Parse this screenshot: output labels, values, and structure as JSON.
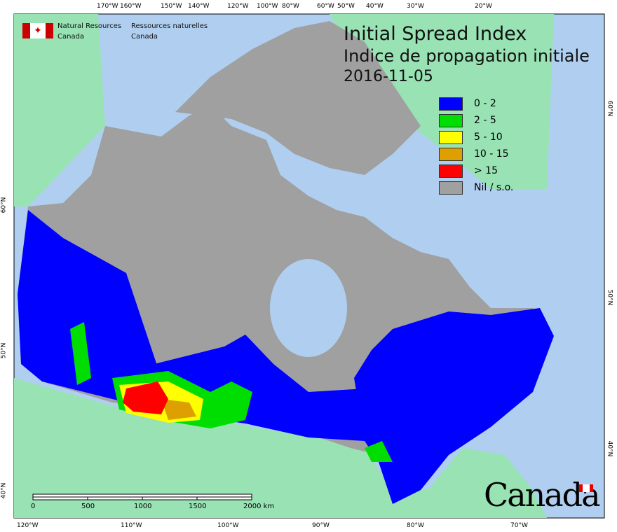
{
  "header": {
    "org_en_1": "Natural Resources",
    "org_en_2": "Canada",
    "org_fr_1": "Ressources naturelles",
    "org_fr_2": "Canada"
  },
  "title": {
    "en": "Initial Spread Index",
    "fr": "Indice de propagation initiale",
    "date": "2016-11-05"
  },
  "legend": [
    {
      "label": "0 - 2",
      "color": "#0000ff"
    },
    {
      "label": "2 - 5",
      "color": "#00dd00"
    },
    {
      "label": "5 - 10",
      "color": "#ffff00"
    },
    {
      "label": "10 - 15",
      "color": "#dda000"
    },
    {
      "label": "> 15",
      "color": "#ff0000"
    },
    {
      "label": "Nil / s.o.",
      "color": "#a0a0a0"
    }
  ],
  "axes": {
    "top": [
      "170°W",
      "160°W",
      "150°W",
      "140°W",
      "120°W",
      "100°W",
      "80°W",
      "60°W",
      "50°W",
      "40°W",
      "30°W",
      "20°W"
    ],
    "bottom": [
      "120°W",
      "110°W",
      "100°W",
      "90°W",
      "80°W",
      "70°W"
    ],
    "left": [
      "60°N",
      "50°N",
      "40°N"
    ],
    "right": [
      "60°N",
      "50°N",
      "40°N"
    ]
  },
  "scale_bar": {
    "labels": [
      "0",
      "500",
      "1000",
      "1500",
      "2000 km"
    ]
  },
  "wordmark": "Canada",
  "colors": {
    "ocean": "#b0cff0",
    "foreign_land": "#98e2b4",
    "nil": "#a0a0a0"
  }
}
